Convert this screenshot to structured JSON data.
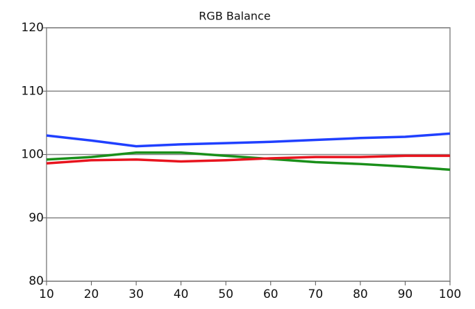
{
  "chart_data": {
    "type": "line",
    "title": "RGB Balance",
    "x": [
      10,
      20,
      30,
      40,
      50,
      60,
      70,
      80,
      90,
      100
    ],
    "series": [
      {
        "color": "#1a8f1a",
        "values": [
          99.2,
          99.6,
          100.3,
          100.3,
          99.8,
          99.3,
          98.8,
          98.5,
          98.1,
          97.6
        ]
      },
      {
        "color": "#e8141e",
        "values": [
          98.6,
          99.1,
          99.2,
          98.9,
          99.1,
          99.4,
          99.6,
          99.6,
          99.8,
          99.8
        ]
      },
      {
        "color": "#2040ff",
        "values": [
          103.0,
          102.2,
          101.3,
          101.6,
          101.8,
          102.0,
          102.3,
          102.6,
          102.8,
          103.3
        ]
      }
    ],
    "xlim": [
      10,
      100
    ],
    "xticks": [
      10,
      20,
      30,
      40,
      50,
      60,
      70,
      80,
      90,
      100
    ],
    "ylim": [
      80,
      120
    ],
    "yticks": [
      80,
      90,
      100,
      110,
      120
    ],
    "grid": true
  }
}
